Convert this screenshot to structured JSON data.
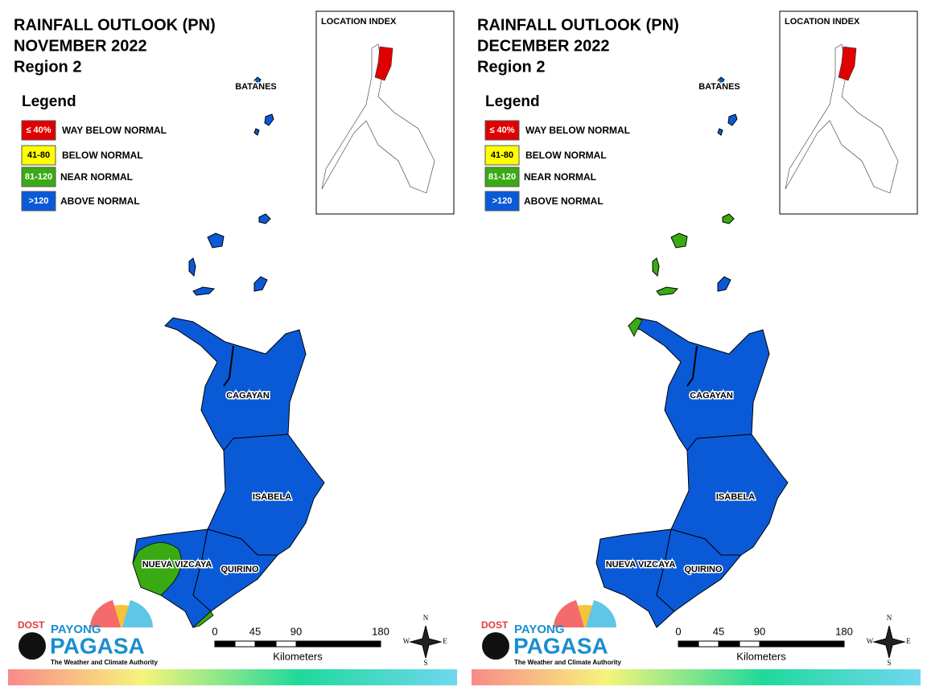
{
  "panels": [
    {
      "title": [
        "RAINFALL OUTLOOK (PN)",
        "NOVEMBER 2022",
        "Region 2"
      ],
      "legend": {
        "title": "Legend",
        "items": [
          {
            "swatch": "≤ 40%",
            "label": "WAY BELOW NORMAL",
            "color": "#e00000",
            "text_color": "#ffffff"
          },
          {
            "swatch": "41-80",
            "label": "BELOW NORMAL",
            "color": "#ffff00",
            "text_color": "#000000"
          },
          {
            "swatch": "81-120",
            "label": "NEAR NORMAL",
            "color": "#3aaa14",
            "text_color": "#ffffff"
          },
          {
            "swatch": ">120",
            "label": "ABOVE NORMAL",
            "color": "#0a5ad8",
            "text_color": "#ffffff"
          }
        ]
      },
      "index_title": "LOCATION INDEX",
      "provinces": [
        {
          "name": "BATANES",
          "class": 3
        },
        {
          "name": "CAGAYAN",
          "class": 3
        },
        {
          "name": "ISABELA",
          "class": 3
        },
        {
          "name": "NUEVA VIZCAYA",
          "class": 3
        },
        {
          "name": "QUIRINO",
          "class": 3
        }
      ],
      "islands_class": [
        3,
        3,
        3,
        3,
        3
      ],
      "patches": [
        {
          "where": "nueva-vizcaya-west",
          "class": 2
        },
        {
          "where": "nueva-vizcaya-south",
          "class": 2
        }
      ],
      "scale": {
        "ticks": [
          "0",
          "45",
          "90",
          "180"
        ],
        "unit": "Kilometers"
      },
      "compass": [
        "N",
        "E",
        "S",
        "W"
      ],
      "logo": {
        "dost": "DOST",
        "payong": "PAYONG",
        "pagasa": "PAGASA",
        "tagline": "The Weather and Climate Authority"
      }
    },
    {
      "title": [
        "RAINFALL OUTLOOK (PN)",
        "DECEMBER 2022",
        "Region 2"
      ],
      "legend": {
        "title": "Legend",
        "items": [
          {
            "swatch": "≤ 40%",
            "label": "WAY BELOW NORMAL",
            "color": "#e00000",
            "text_color": "#ffffff"
          },
          {
            "swatch": "41-80",
            "label": "BELOW NORMAL",
            "color": "#ffff00",
            "text_color": "#000000"
          },
          {
            "swatch": "81-120",
            "label": "NEAR NORMAL",
            "color": "#3aaa14",
            "text_color": "#ffffff"
          },
          {
            "swatch": ">120",
            "label": "ABOVE NORMAL",
            "color": "#0a5ad8",
            "text_color": "#ffffff"
          }
        ]
      },
      "index_title": "LOCATION INDEX",
      "provinces": [
        {
          "name": "BATANES",
          "class": 3
        },
        {
          "name": "CAGAYAN",
          "class": 3
        },
        {
          "name": "ISABELA",
          "class": 3
        },
        {
          "name": "NUEVA VIZCAYA",
          "class": 3
        },
        {
          "name": "QUIRINO",
          "class": 3
        }
      ],
      "islands_class": [
        2,
        2,
        2,
        2,
        3
      ],
      "patches": [
        {
          "where": "cagayan-west-tip",
          "class": 2
        }
      ],
      "scale": {
        "ticks": [
          "0",
          "45",
          "90",
          "180"
        ],
        "unit": "Kilometers"
      },
      "compass": [
        "N",
        "E",
        "S",
        "W"
      ],
      "logo": {
        "dost": "DOST",
        "payong": "PAYONG",
        "pagasa": "PAGASA",
        "tagline": "The Weather and Climate Authority"
      }
    }
  ]
}
